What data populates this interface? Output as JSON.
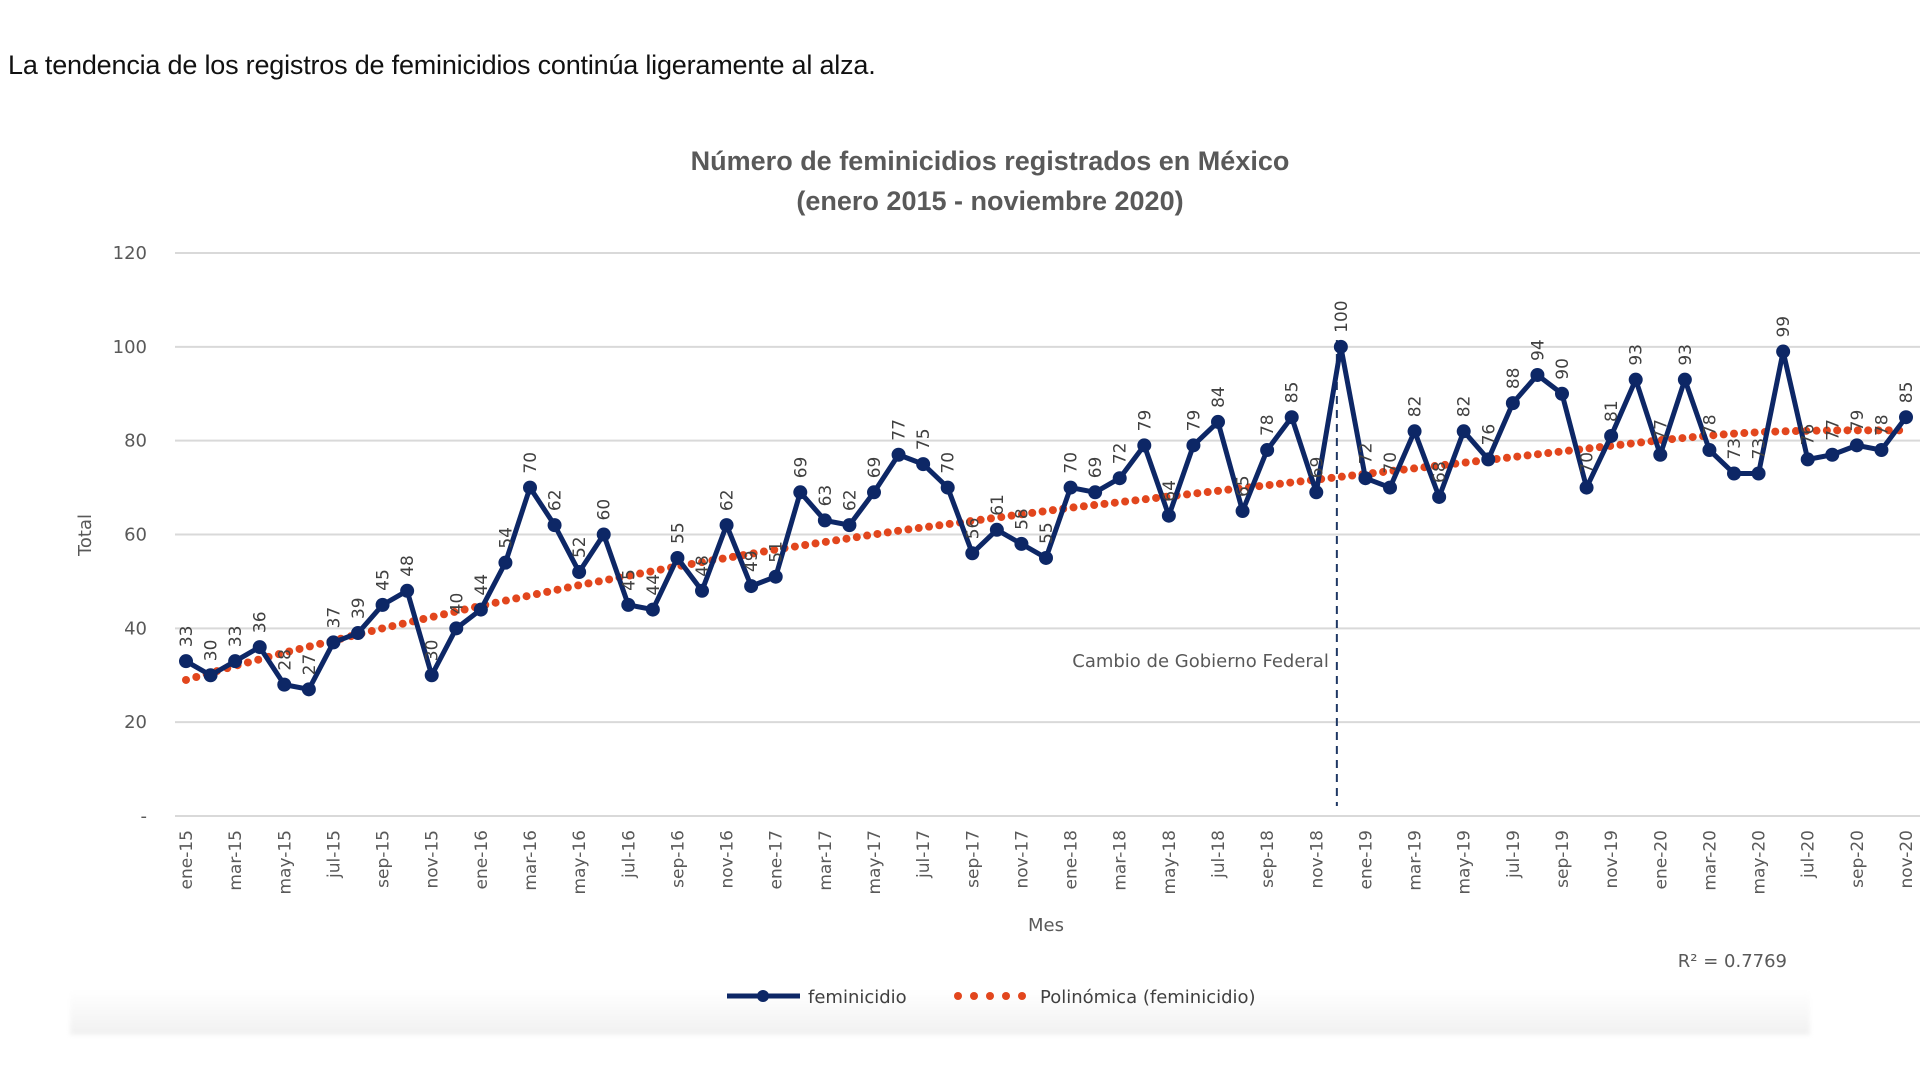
{
  "intro_text": "La tendencia de los registros de feminicidios continúa ligeramente al alza.",
  "chart_data": {
    "type": "line",
    "title": [
      "Número de feminicidios registrados en México",
      "(enero 2015 - noviembre 2020)"
    ],
    "xlabel": "Mes",
    "ylabel": "Total",
    "ylim": [
      0,
      120
    ],
    "yticks": [
      0,
      20,
      40,
      60,
      80,
      100,
      120
    ],
    "ytick_labels": [
      "-",
      "20",
      "40",
      "60",
      "80",
      "100",
      "120"
    ],
    "grid": true,
    "x": [
      "ene-15",
      "feb-15",
      "mar-15",
      "abr-15",
      "may-15",
      "jun-15",
      "jul-15",
      "ago-15",
      "sep-15",
      "oct-15",
      "nov-15",
      "dic-15",
      "ene-16",
      "feb-16",
      "mar-16",
      "abr-16",
      "may-16",
      "jun-16",
      "jul-16",
      "ago-16",
      "sep-16",
      "oct-16",
      "nov-16",
      "dic-16",
      "ene-17",
      "feb-17",
      "mar-17",
      "abr-17",
      "may-17",
      "jun-17",
      "jul-17",
      "ago-17",
      "sep-17",
      "oct-17",
      "nov-17",
      "dic-17",
      "ene-18",
      "feb-18",
      "mar-18",
      "abr-18",
      "may-18",
      "jun-18",
      "jul-18",
      "ago-18",
      "sep-18",
      "oct-18",
      "nov-18",
      "dic-18",
      "ene-19",
      "feb-19",
      "mar-19",
      "abr-19",
      "may-19",
      "jun-19",
      "jul-19",
      "ago-19",
      "sep-19",
      "oct-19",
      "nov-19",
      "dic-19",
      "ene-20",
      "feb-20",
      "mar-20",
      "abr-20",
      "may-20",
      "jun-20",
      "jul-20",
      "ago-20",
      "sep-20",
      "oct-20",
      "nov-20"
    ],
    "xtick_every": 2,
    "series": [
      {
        "name": "feminicidio",
        "color": "#0d2766",
        "values": [
          33,
          30,
          33,
          36,
          28,
          27,
          37,
          39,
          45,
          48,
          30,
          40,
          44,
          54,
          70,
          62,
          52,
          60,
          45,
          44,
          55,
          48,
          62,
          49,
          51,
          69,
          63,
          62,
          69,
          77,
          75,
          70,
          56,
          61,
          58,
          55,
          70,
          69,
          72,
          79,
          64,
          79,
          84,
          65,
          78,
          85,
          69,
          100,
          72,
          70,
          82,
          68,
          82,
          76,
          88,
          94,
          90,
          70,
          81,
          93,
          77,
          93,
          78,
          73,
          73,
          99,
          76,
          77,
          79,
          78,
          85
        ]
      },
      {
        "name": "Polinómica (feminicidio)",
        "color": "#e2461d",
        "style": "dotted",
        "values": [
          29,
          30.5,
          32,
          33.4,
          34.8,
          36.1,
          37.4,
          38.7,
          40,
          41.2,
          42.4,
          43.6,
          44.8,
          45.9,
          47,
          48.1,
          49.2,
          50.2,
          51.2,
          52.2,
          53.2,
          54.1,
          55,
          55.9,
          56.8,
          57.6,
          58.4,
          59.2,
          60,
          60.8,
          61.5,
          62.2,
          62.9,
          63.6,
          64.3,
          65,
          65.7,
          66.3,
          66.9,
          67.5,
          68.1,
          68.7,
          69.3,
          69.9,
          70.5,
          71.1,
          71.7,
          72.3,
          72.9,
          73.5,
          74.1,
          74.7,
          75.3,
          75.9,
          76.5,
          77.1,
          77.7,
          78.3,
          78.9,
          79.5,
          80.1,
          80.6,
          81.1,
          81.5,
          81.8,
          82,
          82.1,
          82.2,
          82.2,
          82.2,
          82.2
        ]
      }
    ],
    "annotation": {
      "text": "Cambio de Gobierno Federal",
      "at": "dic-18",
      "style": "dashed vertical line"
    },
    "r_squared_label": "R² = 0.7769",
    "legend": {
      "placement": "bottom",
      "entries": [
        "feminicidio",
        "Polinómica (feminicidio)"
      ]
    }
  }
}
